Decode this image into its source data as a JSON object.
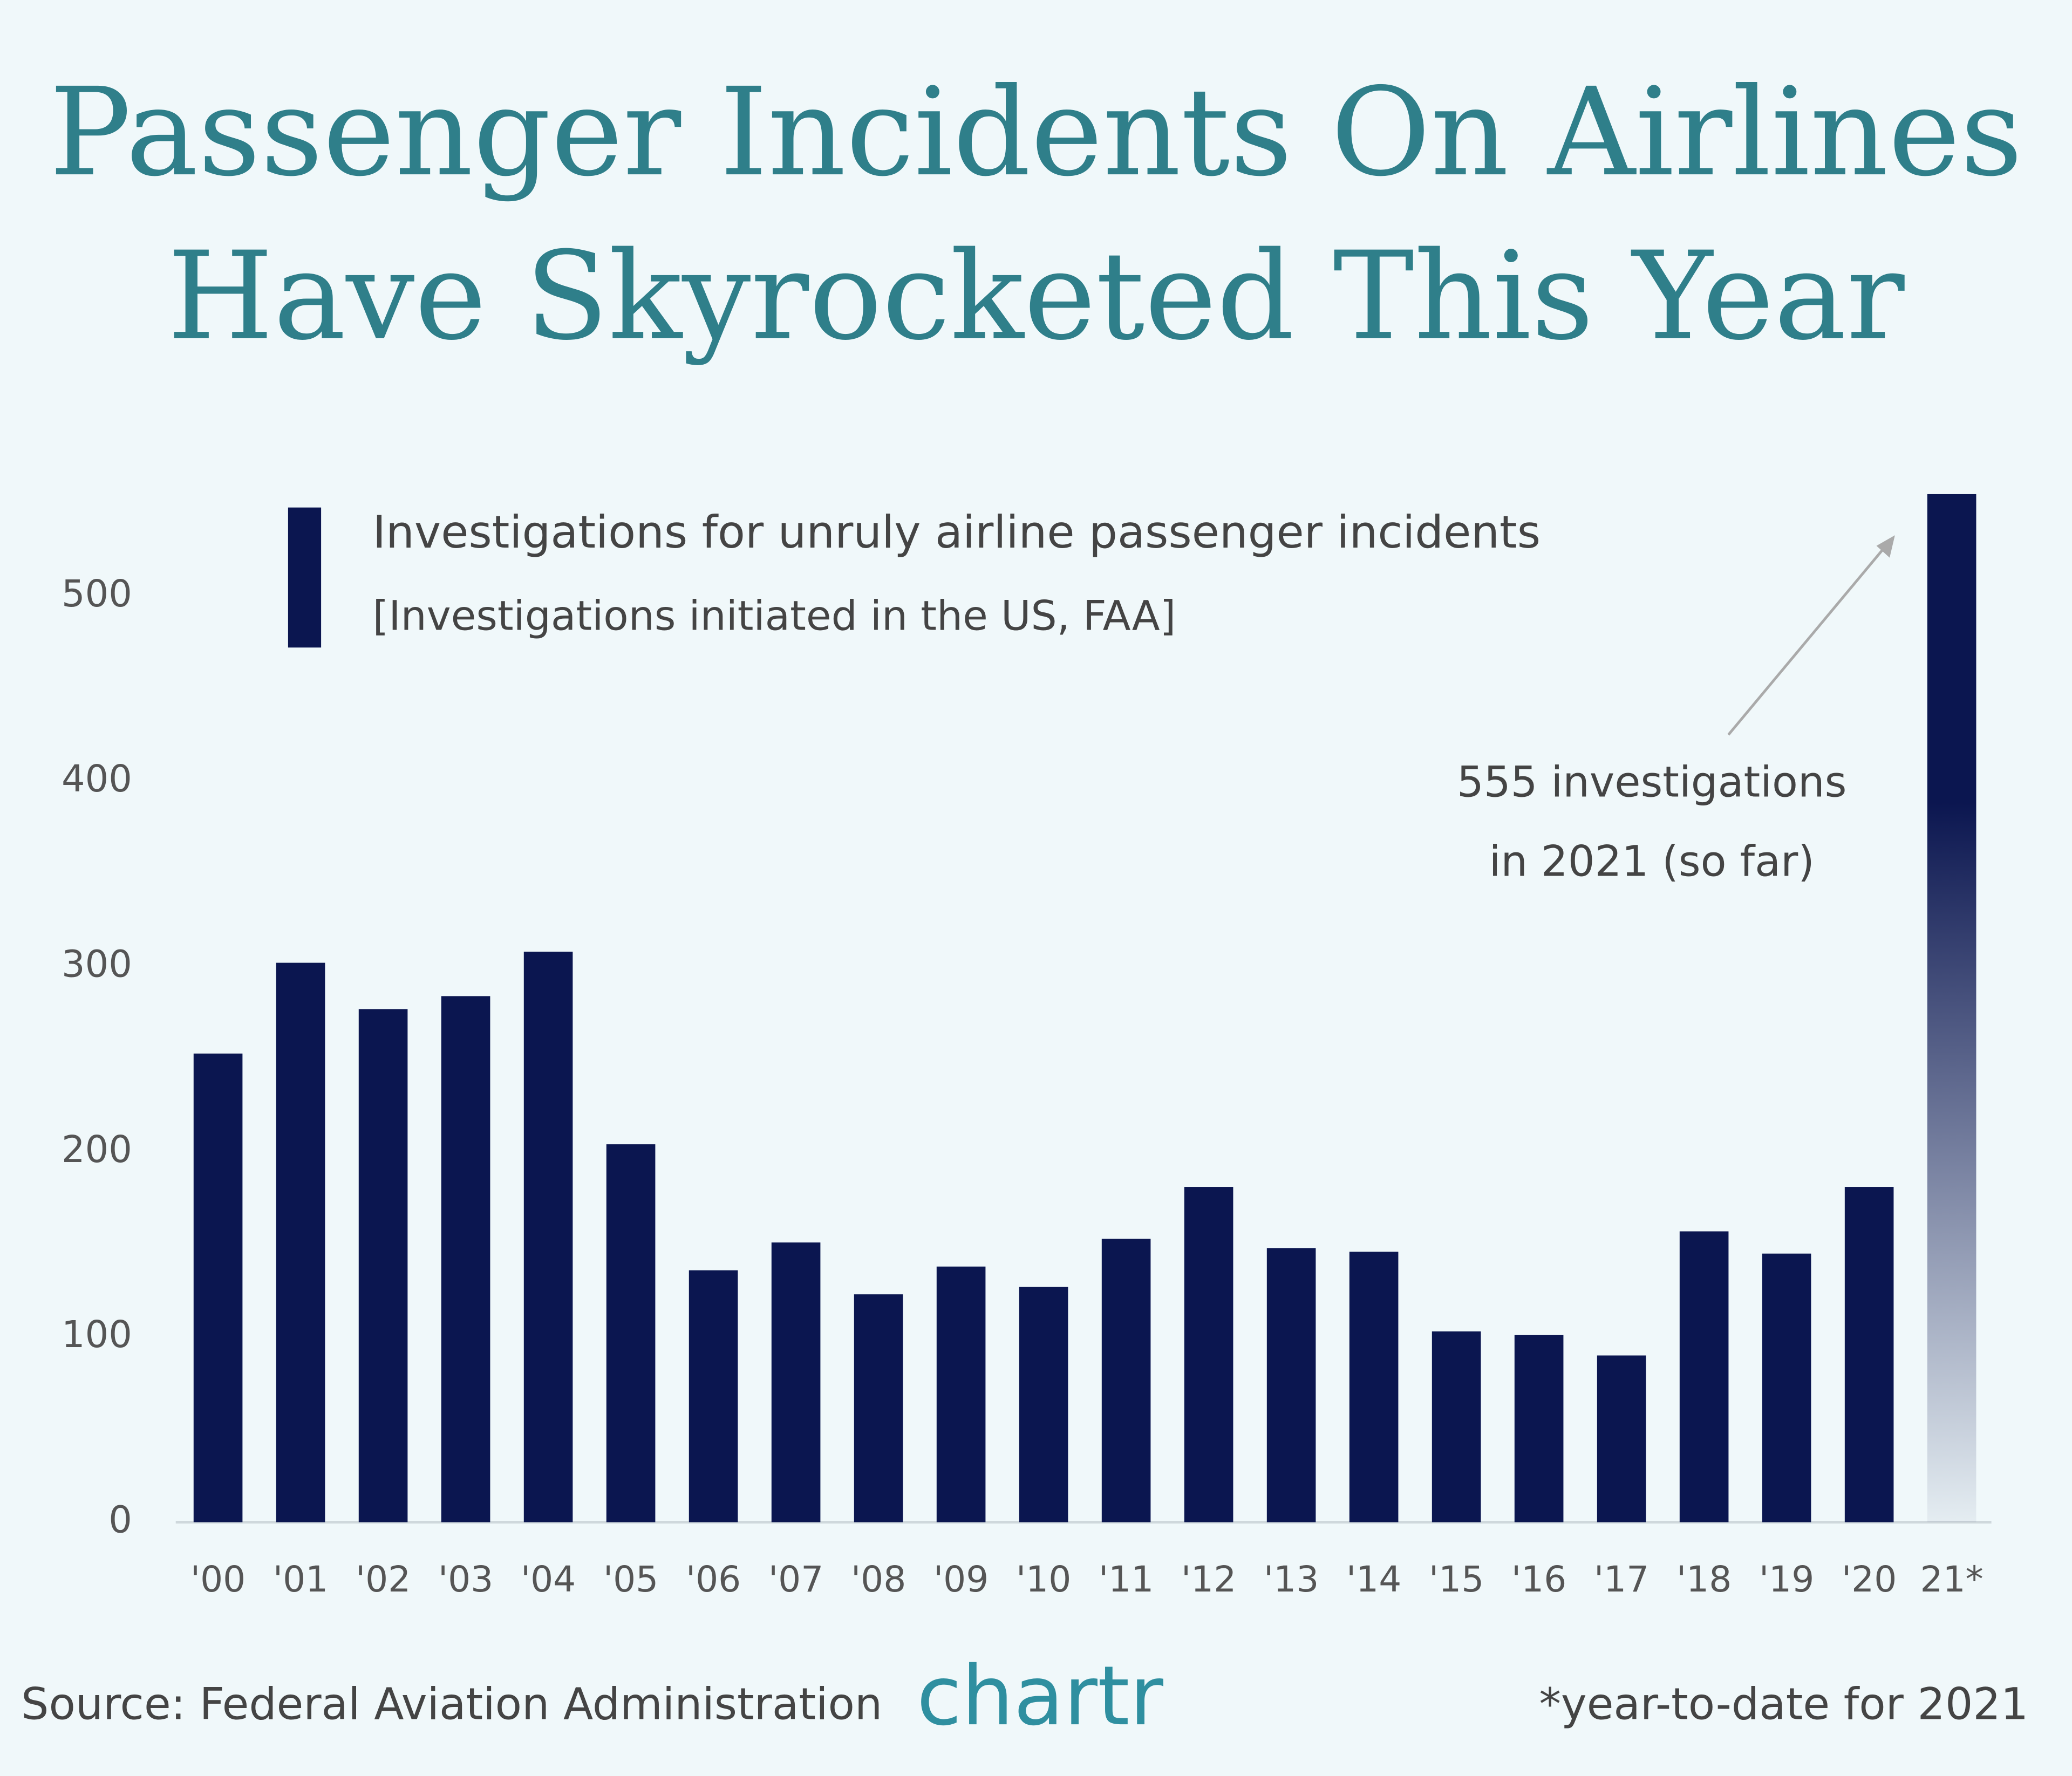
{
  "chart_data": {
    "type": "bar",
    "title": [
      "Passenger Incidents On Airlines",
      "Have Skyrocketed This Year"
    ],
    "subtitle": "[Investigations initiated in the US, FAA]",
    "categories": [
      "'00",
      "'01",
      "'02",
      "'03",
      "'04",
      "'05",
      "'06",
      "'07",
      "'08",
      "'09",
      "'10",
      "'11",
      "'12",
      "'13",
      "'14",
      "'15",
      "'16",
      "'17",
      "'18",
      "'19",
      "'20",
      "21*"
    ],
    "series": [
      {
        "name": "Investigations for unruly airline passenger incidents",
        "color": "#0b1650",
        "values": [
          253,
          302,
          277,
          284,
          308,
          204,
          136,
          151,
          123,
          138,
          127,
          153,
          181,
          148,
          146,
          103,
          101,
          90,
          157,
          145,
          181,
          555
        ]
      }
    ],
    "ylim": [
      0,
      560
    ],
    "yticks": [
      0,
      100,
      200,
      300,
      400,
      500
    ],
    "grid": false,
    "annotation": [
      "555 investigations",
      "in 2021 (so far)"
    ],
    "source": "Source: Federal Aviation Administration",
    "logo": "chartr",
    "footnote": "*year-to-date for 2021"
  }
}
